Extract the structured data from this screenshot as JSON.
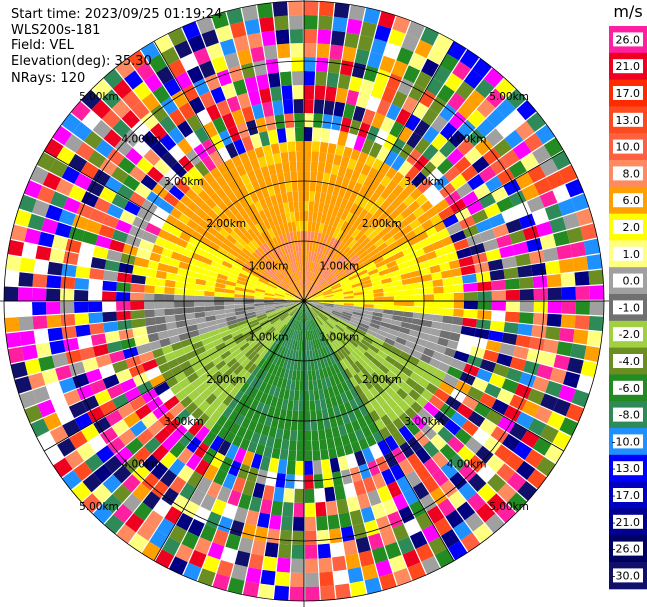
{
  "header": {
    "start_time": "Start time: 2023/09/25 01:19:24",
    "instrument": "WLS200s-181",
    "field": "Field: VEL",
    "elevation": "Elevation(deg): 35.30",
    "nrays": "NRays: 120"
  },
  "chart_data": {
    "type": "heatmap",
    "projection": "polar",
    "field": "VEL",
    "n_rays": 120,
    "elevation_deg": 35.3,
    "range_rings_km": [
      1.0,
      2.0,
      3.0,
      4.0,
      5.0
    ],
    "ring_labels": [
      "1.00km",
      "2.00km",
      "3.00km",
      "4.00km",
      "5.00km"
    ],
    "colorbar": {
      "unit": "m/s",
      "ticks": [
        "26.0",
        "21.0",
        "17.0",
        "13.0",
        "10.0",
        "8.0",
        "6.0",
        "2.0",
        "1.0",
        "0.0",
        "-1.0",
        "-2.0",
        "-4.0",
        "-6.0",
        "-8.0",
        "-10.0",
        "-13.0",
        "-17.0",
        "-21.0",
        "-26.0",
        "-30.0"
      ],
      "colors": [
        "#ff1fa0",
        "#f00020",
        "#ff2a00",
        "#ff4a20",
        "#ff6040",
        "#ff8a60",
        "#ffa000",
        "#ffff00",
        "#ffff80",
        "#a0a0a0",
        "#707070",
        "#a0d040",
        "#6b8e23",
        "#228b22",
        "#2e8b57",
        "#1e90ff",
        "#0000ff",
        "#0000c0",
        "#000090",
        "#000060",
        "#10106a"
      ]
    }
  }
}
